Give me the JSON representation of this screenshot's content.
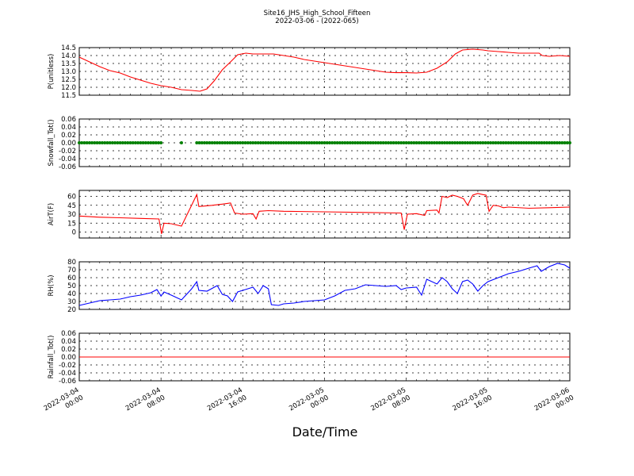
{
  "title": "Site16_JHS_High_School_Fifteen",
  "subtitle": "2022-03-06 - (2022-065)",
  "colors": {
    "red": "#ff0000",
    "green": "#008000",
    "blue": "#0000ff",
    "grid": "#000000"
  },
  "chart_data": {
    "type": "line",
    "xlabel": "Date/Time",
    "x_ticks": [
      {
        "t": 0,
        "line1": "2022-03-04",
        "line2": "00:00"
      },
      {
        "t": 8,
        "line1": "2022-03-04",
        "line2": "08:00"
      },
      {
        "t": 16,
        "line1": "2022-03-04",
        "line2": "16:00"
      },
      {
        "t": 24,
        "line1": "2022-03-05",
        "line2": "00:00"
      },
      {
        "t": 32,
        "line1": "2022-03-05",
        "line2": "08:00"
      },
      {
        "t": 40,
        "line1": "2022-03-05",
        "line2": "16:00"
      },
      {
        "t": 48,
        "line1": "2022-03-06",
        "line2": "00:00"
      }
    ],
    "x_range_hours": [
      0,
      48
    ],
    "grid": true,
    "panels": [
      {
        "ylabel": "P(unitless)",
        "color": "#ff0000",
        "style": "line",
        "ylim": [
          11.5,
          14.5
        ],
        "yticks": [
          "11.5",
          "12.0",
          "12.5",
          "13.0",
          "13.5",
          "14.0",
          "14.5"
        ],
        "series": [
          {
            "x": 0,
            "y": 13.9
          },
          {
            "x": 1,
            "y": 13.6
          },
          {
            "x": 2,
            "y": 13.3
          },
          {
            "x": 3,
            "y": 13.05
          },
          {
            "x": 4,
            "y": 12.9
          },
          {
            "x": 5,
            "y": 12.65
          },
          {
            "x": 6,
            "y": 12.45
          },
          {
            "x": 7,
            "y": 12.25
          },
          {
            "x": 8,
            "y": 12.1
          },
          {
            "x": 9,
            "y": 12.0
          },
          {
            "x": 10,
            "y": 11.85
          },
          {
            "x": 11,
            "y": 11.8
          },
          {
            "x": 11.8,
            "y": 11.75
          },
          {
            "x": 12.5,
            "y": 11.9
          },
          {
            "x": 13.2,
            "y": 12.4
          },
          {
            "x": 14,
            "y": 13.1
          },
          {
            "x": 14.8,
            "y": 13.6
          },
          {
            "x": 15.5,
            "y": 14.05
          },
          {
            "x": 16.3,
            "y": 14.15
          },
          {
            "x": 17,
            "y": 14.1
          },
          {
            "x": 18,
            "y": 14.1
          },
          {
            "x": 19,
            "y": 14.1
          },
          {
            "x": 20,
            "y": 14.0
          },
          {
            "x": 21,
            "y": 13.9
          },
          {
            "x": 22,
            "y": 13.75
          },
          {
            "x": 23,
            "y": 13.65
          },
          {
            "x": 24,
            "y": 13.55
          },
          {
            "x": 25,
            "y": 13.45
          },
          {
            "x": 26,
            "y": 13.35
          },
          {
            "x": 27,
            "y": 13.25
          },
          {
            "x": 28,
            "y": 13.15
          },
          {
            "x": 29,
            "y": 13.05
          },
          {
            "x": 30,
            "y": 12.95
          },
          {
            "x": 31,
            "y": 12.92
          },
          {
            "x": 32,
            "y": 12.92
          },
          {
            "x": 33,
            "y": 12.9
          },
          {
            "x": 34,
            "y": 12.95
          },
          {
            "x": 35,
            "y": 13.2
          },
          {
            "x": 36,
            "y": 13.6
          },
          {
            "x": 36.8,
            "y": 14.1
          },
          {
            "x": 37.5,
            "y": 14.35
          },
          {
            "x": 38.5,
            "y": 14.4
          },
          {
            "x": 39.5,
            "y": 14.35
          },
          {
            "x": 40,
            "y": 14.3
          },
          {
            "x": 41,
            "y": 14.25
          },
          {
            "x": 42,
            "y": 14.2
          },
          {
            "x": 43,
            "y": 14.15
          },
          {
            "x": 44,
            "y": 14.15
          },
          {
            "x": 45,
            "y": 14.15
          },
          {
            "x": 45.3,
            "y": 14.0
          },
          {
            "x": 46,
            "y": 13.95
          },
          {
            "x": 47,
            "y": 14.0
          },
          {
            "x": 48,
            "y": 13.95
          }
        ]
      },
      {
        "ylabel": "Snowfall_Tot()",
        "color": "#008000",
        "style": "dots",
        "ylim": [
          -0.06,
          0.06
        ],
        "yticks": [
          "-0.06",
          "-0.04",
          "-0.02",
          "0.00",
          "0.02",
          "0.04",
          "0.06"
        ],
        "value": 0.0,
        "segments": [
          [
            0,
            8.2
          ],
          [
            10,
            10
          ],
          [
            11.5,
            48
          ]
        ]
      },
      {
        "ylabel": "AirT(F)",
        "color": "#ff0000",
        "style": "line",
        "ylim": [
          -10,
          70
        ],
        "yticks": [
          "0",
          "15",
          "30",
          "45",
          "60"
        ],
        "series": [
          {
            "x": 0,
            "y": 27
          },
          {
            "x": 2,
            "y": 25
          },
          {
            "x": 4,
            "y": 24
          },
          {
            "x": 6,
            "y": 23
          },
          {
            "x": 7.8,
            "y": 22
          },
          {
            "x": 8.05,
            "y": -3
          },
          {
            "x": 8.3,
            "y": 15
          },
          {
            "x": 9,
            "y": 14
          },
          {
            "x": 10,
            "y": 10
          },
          {
            "x": 11.5,
            "y": 63
          },
          {
            "x": 11.7,
            "y": 43
          },
          {
            "x": 13,
            "y": 45
          },
          {
            "x": 14,
            "y": 47
          },
          {
            "x": 14.8,
            "y": 49
          },
          {
            "x": 15.2,
            "y": 32
          },
          {
            "x": 16,
            "y": 30
          },
          {
            "x": 17,
            "y": 31
          },
          {
            "x": 17.3,
            "y": 22
          },
          {
            "x": 17.6,
            "y": 35
          },
          {
            "x": 18.5,
            "y": 36
          },
          {
            "x": 20,
            "y": 35
          },
          {
            "x": 24,
            "y": 34
          },
          {
            "x": 28,
            "y": 33
          },
          {
            "x": 31.5,
            "y": 32
          },
          {
            "x": 31.8,
            "y": 4
          },
          {
            "x": 32.1,
            "y": 30
          },
          {
            "x": 33,
            "y": 31
          },
          {
            "x": 33.8,
            "y": 28
          },
          {
            "x": 34,
            "y": 36
          },
          {
            "x": 35,
            "y": 37
          },
          {
            "x": 35.2,
            "y": 32
          },
          {
            "x": 35.5,
            "y": 60
          },
          {
            "x": 36,
            "y": 58
          },
          {
            "x": 36.5,
            "y": 62
          },
          {
            "x": 37,
            "y": 60
          },
          {
            "x": 37.6,
            "y": 56
          },
          {
            "x": 38,
            "y": 45
          },
          {
            "x": 38.5,
            "y": 62
          },
          {
            "x": 39,
            "y": 65
          },
          {
            "x": 39.5,
            "y": 63
          },
          {
            "x": 39.8,
            "y": 62
          },
          {
            "x": 40.1,
            "y": 35
          },
          {
            "x": 40.5,
            "y": 45
          },
          {
            "x": 41,
            "y": 44
          },
          {
            "x": 41.5,
            "y": 41
          },
          {
            "x": 42,
            "y": 42
          },
          {
            "x": 44,
            "y": 40
          },
          {
            "x": 46,
            "y": 41
          },
          {
            "x": 48,
            "y": 42
          }
        ]
      },
      {
        "ylabel": "RH(%)",
        "color": "#0000ff",
        "style": "line",
        "ylim": [
          20,
          80
        ],
        "yticks": [
          "20",
          "30",
          "40",
          "50",
          "60",
          "70",
          "80"
        ],
        "series": [
          {
            "x": 0,
            "y": 25
          },
          {
            "x": 1,
            "y": 28
          },
          {
            "x": 2,
            "y": 31
          },
          {
            "x": 3,
            "y": 32
          },
          {
            "x": 4,
            "y": 33
          },
          {
            "x": 5,
            "y": 36
          },
          {
            "x": 6,
            "y": 38
          },
          {
            "x": 7,
            "y": 41
          },
          {
            "x": 7.6,
            "y": 45
          },
          {
            "x": 8,
            "y": 37
          },
          {
            "x": 8.3,
            "y": 42
          },
          {
            "x": 9,
            "y": 38
          },
          {
            "x": 10,
            "y": 32
          },
          {
            "x": 11,
            "y": 46
          },
          {
            "x": 11.5,
            "y": 55
          },
          {
            "x": 11.7,
            "y": 44
          },
          {
            "x": 12.5,
            "y": 43
          },
          {
            "x": 13.5,
            "y": 50
          },
          {
            "x": 14,
            "y": 39
          },
          {
            "x": 14.5,
            "y": 37
          },
          {
            "x": 15,
            "y": 30
          },
          {
            "x": 15.5,
            "y": 42
          },
          {
            "x": 16,
            "y": 44
          },
          {
            "x": 16.5,
            "y": 46
          },
          {
            "x": 17,
            "y": 48
          },
          {
            "x": 17.5,
            "y": 40
          },
          {
            "x": 18,
            "y": 50
          },
          {
            "x": 18.5,
            "y": 46
          },
          {
            "x": 18.8,
            "y": 26
          },
          {
            "x": 19.5,
            "y": 25
          },
          {
            "x": 20,
            "y": 27
          },
          {
            "x": 21,
            "y": 28
          },
          {
            "x": 22,
            "y": 30
          },
          {
            "x": 23,
            "y": 31
          },
          {
            "x": 24,
            "y": 32
          },
          {
            "x": 25,
            "y": 37
          },
          {
            "x": 26,
            "y": 44
          },
          {
            "x": 27,
            "y": 46
          },
          {
            "x": 28,
            "y": 51
          },
          {
            "x": 29,
            "y": 50
          },
          {
            "x": 30,
            "y": 49
          },
          {
            "x": 31,
            "y": 50
          },
          {
            "x": 31.5,
            "y": 45
          },
          {
            "x": 32,
            "y": 47
          },
          {
            "x": 33,
            "y": 48
          },
          {
            "x": 33.5,
            "y": 38
          },
          {
            "x": 34,
            "y": 58
          },
          {
            "x": 35,
            "y": 52
          },
          {
            "x": 35.5,
            "y": 60
          },
          {
            "x": 36,
            "y": 55
          },
          {
            "x": 36.5,
            "y": 46
          },
          {
            "x": 37,
            "y": 40
          },
          {
            "x": 37.5,
            "y": 55
          },
          {
            "x": 38,
            "y": 57
          },
          {
            "x": 38.5,
            "y": 52
          },
          {
            "x": 39,
            "y": 43
          },
          {
            "x": 39.5,
            "y": 50
          },
          {
            "x": 40,
            "y": 55
          },
          {
            "x": 41,
            "y": 60
          },
          {
            "x": 42,
            "y": 65
          },
          {
            "x": 43,
            "y": 68
          },
          {
            "x": 44,
            "y": 72
          },
          {
            "x": 44.8,
            "y": 75
          },
          {
            "x": 45.2,
            "y": 68
          },
          {
            "x": 46,
            "y": 74
          },
          {
            "x": 46.8,
            "y": 78
          },
          {
            "x": 47.5,
            "y": 76
          },
          {
            "x": 48,
            "y": 72
          }
        ]
      },
      {
        "ylabel": "Rainfall_Tot()",
        "color": "#ff0000",
        "style": "line",
        "ylim": [
          -0.06,
          0.06
        ],
        "yticks": [
          "-0.06",
          "-0.04",
          "-0.02",
          "0.00",
          "0.02",
          "0.04",
          "0.06"
        ],
        "series": [
          {
            "x": 0,
            "y": 0.0
          },
          {
            "x": 48,
            "y": 0.0
          }
        ]
      }
    ]
  }
}
